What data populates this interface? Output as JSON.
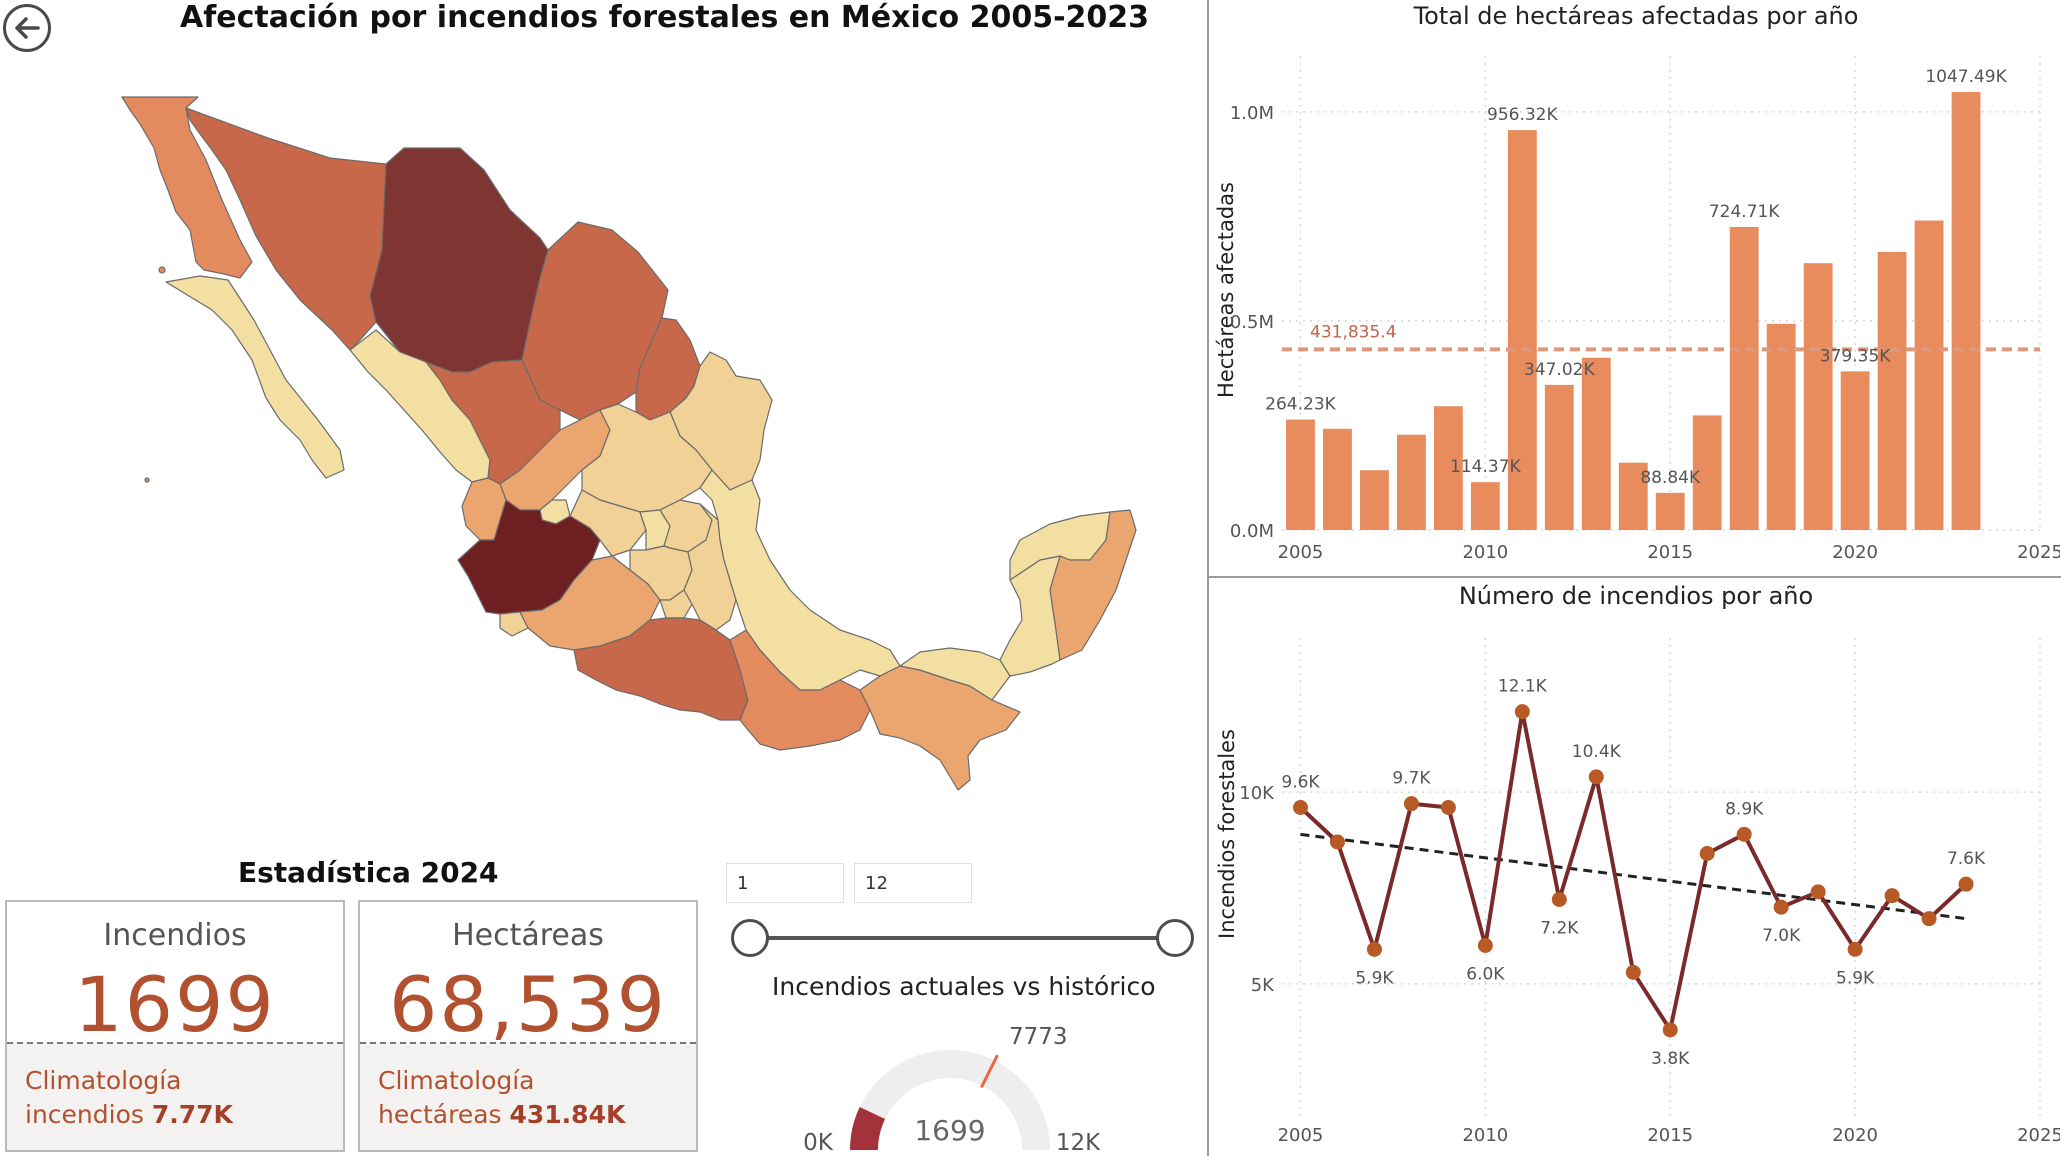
{
  "back_button": {
    "icon": "back-arrow-circle-icon"
  },
  "map": {
    "title": "Afectación por incendios forestales en México 2005-2023",
    "colors": {
      "darkest": "#6e1f22",
      "dark": "#7f3532",
      "mid_dark": "#c7684a",
      "mid": "#e38b5e",
      "light_mid": "#eba56f",
      "light": "#f1d195",
      "lightest": "#f3dfa1"
    }
  },
  "stats": {
    "title": "Estadística 2024",
    "incendios": {
      "label": "Incendios",
      "value": "1699",
      "foot_line1": "Climatología",
      "foot_line2_prefix": "incendios ",
      "foot_line2_value": "7.77K"
    },
    "hectareas": {
      "label": "Hectáreas",
      "value": "68,539",
      "foot_line1": "Climatología",
      "foot_line2_prefix": "hectáreas ",
      "foot_line2_value": "431.84K"
    }
  },
  "slider": {
    "start_value": "1",
    "end_value": "12",
    "start_fraction": 0,
    "end_fraction": 1
  },
  "gauge": {
    "title": "Incendios actuales vs histórico",
    "min_label": "0K",
    "max_label": "12K",
    "value_label": "1699",
    "target_label": "7773",
    "min": 0,
    "max": 12000,
    "value": 1699,
    "target": 7773,
    "colors": {
      "fill": "#a3323a",
      "track": "#eeeeee",
      "target": "#e8693d"
    }
  },
  "chart_data": [
    {
      "type": "bar",
      "title": "Total de hectáreas afectadas por año",
      "ylabel": "Hectáreas afectadas",
      "xlabel": "",
      "x": [
        2005,
        2006,
        2007,
        2008,
        2009,
        2010,
        2011,
        2012,
        2013,
        2014,
        2015,
        2016,
        2017,
        2018,
        2019,
        2020,
        2021,
        2022,
        2023
      ],
      "values": [
        264230,
        242000,
        143000,
        228000,
        296000,
        114370,
        956320,
        347020,
        412000,
        161000,
        88840,
        274000,
        724710,
        493000,
        638000,
        379350,
        665000,
        740000,
        1047490
      ],
      "data_labels": [
        {
          "x": 2005,
          "text": "264.23K"
        },
        {
          "x": 2010,
          "text": "114.37K"
        },
        {
          "x": 2011,
          "text": "956.32K"
        },
        {
          "x": 2012,
          "text": "347.02K"
        },
        {
          "x": 2015,
          "text": "88.84K"
        },
        {
          "x": 2017,
          "text": "724.71K"
        },
        {
          "x": 2020,
          "text": "379.35K"
        },
        {
          "x": 2023,
          "text": "1047.49K"
        }
      ],
      "reference_line": {
        "value": 431835.4,
        "label": "431,835.4"
      },
      "xlim": [
        2004.5,
        2025
      ],
      "ylim": [
        0,
        1100000
      ],
      "x_ticks": [
        "2005",
        "2010",
        "2015",
        "2020",
        "2025"
      ],
      "x_tick_values": [
        2005,
        2010,
        2015,
        2020,
        2025
      ],
      "y_ticks": [
        "0.0M",
        "0.5M",
        "1.0M"
      ],
      "y_tick_values": [
        0,
        500000,
        1000000
      ],
      "grid": true,
      "colors": {
        "bar": "#e88c5e",
        "reference": "#e0987a",
        "reference_label": "#c0654a"
      }
    },
    {
      "type": "line",
      "title": "Número de incendios por año",
      "ylabel": "Incendios forestales",
      "xlabel": "",
      "x": [
        2005,
        2006,
        2007,
        2008,
        2009,
        2010,
        2011,
        2012,
        2013,
        2014,
        2015,
        2016,
        2017,
        2018,
        2019,
        2020,
        2021,
        2022,
        2023
      ],
      "values": [
        9600,
        8700,
        5900,
        9700,
        9600,
        6000,
        12100,
        7200,
        10400,
        5300,
        3800,
        8400,
        8900,
        7000,
        7400,
        5900,
        7300,
        6700,
        7600
      ],
      "data_labels": [
        {
          "x": 2005,
          "text": "9.6K",
          "pos": "above"
        },
        {
          "x": 2007,
          "text": "5.9K",
          "pos": "below"
        },
        {
          "x": 2008,
          "text": "9.7K",
          "pos": "above"
        },
        {
          "x": 2010,
          "text": "6.0K",
          "pos": "below"
        },
        {
          "x": 2011,
          "text": "12.1K",
          "pos": "above"
        },
        {
          "x": 2012,
          "text": "7.2K",
          "pos": "below"
        },
        {
          "x": 2013,
          "text": "10.4K",
          "pos": "above"
        },
        {
          "x": 2015,
          "text": "3.8K",
          "pos": "below"
        },
        {
          "x": 2017,
          "text": "8.9K",
          "pos": "above"
        },
        {
          "x": 2018,
          "text": "7.0K",
          "pos": "below"
        },
        {
          "x": 2020,
          "text": "5.9K",
          "pos": "below"
        },
        {
          "x": 2023,
          "text": "7.6K",
          "pos": "above"
        }
      ],
      "trend_line": {
        "from": [
          2005,
          8900
        ],
        "to": [
          2023,
          6700
        ]
      },
      "xlim": [
        2004.5,
        2025
      ],
      "ylim": [
        1500,
        13500
      ],
      "x_ticks": [
        "2005",
        "2010",
        "2015",
        "2020",
        "2025"
      ],
      "x_tick_values": [
        2005,
        2010,
        2015,
        2020,
        2025
      ],
      "y_ticks": [
        "5K",
        "10K"
      ],
      "y_tick_values": [
        5000,
        10000
      ],
      "grid": true,
      "colors": {
        "line": "#7a2a2a",
        "marker": "#b85a25",
        "trend": "#222222"
      }
    }
  ]
}
